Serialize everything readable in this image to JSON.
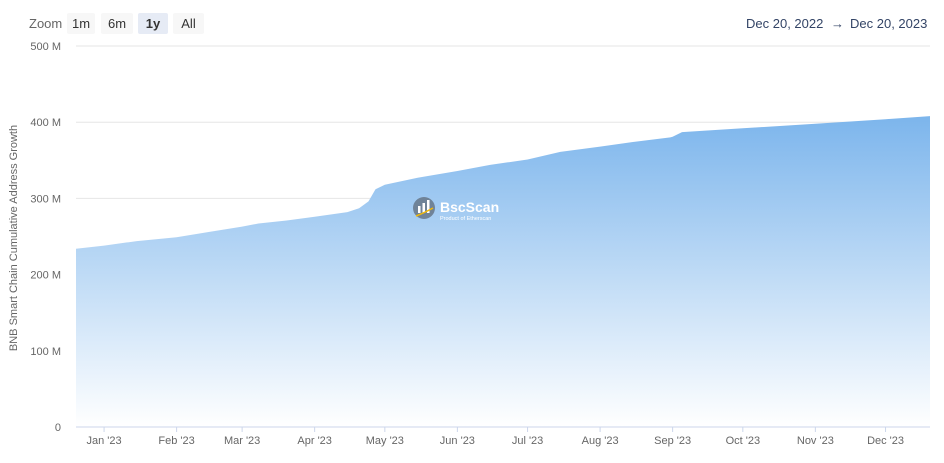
{
  "zoom": {
    "label": "Zoom",
    "buttons": [
      "1m",
      "6m",
      "1y",
      "All"
    ],
    "active": "1y"
  },
  "date_range": {
    "from": "Dec 20, 2022",
    "separator": "→",
    "to": "Dec 20, 2023"
  },
  "watermark": {
    "title": "BscScan",
    "subtitle": "Product of Etherscan"
  },
  "colors": {
    "area_top": "#7cb5ec",
    "area_bottom": "#ffffff",
    "range_text": "#334466"
  },
  "chart_data": {
    "type": "area",
    "title": "",
    "xlabel": "",
    "ylabel": "BNB Smart Chain Cumulative Address Growth",
    "x_start": "2022-12-20",
    "x_end": "2023-12-20",
    "ylim": [
      0,
      500000000
    ],
    "y_ticks": [
      0,
      100000000,
      200000000,
      300000000,
      400000000,
      500000000
    ],
    "y_tick_labels": [
      "0",
      "100 M",
      "200 M",
      "300 M",
      "400 M",
      "500 M"
    ],
    "x_tick_labels": [
      "Jan '23",
      "Feb '23",
      "Mar '23",
      "Apr '23",
      "May '23",
      "Jun '23",
      "Jul '23",
      "Aug '23",
      "Sep '23",
      "Oct '23",
      "Nov '23",
      "Dec '23"
    ],
    "x_tick_dates": [
      "2023-01-01",
      "2023-02-01",
      "2023-03-01",
      "2023-04-01",
      "2023-05-01",
      "2023-06-01",
      "2023-07-01",
      "2023-08-01",
      "2023-09-01",
      "2023-10-01",
      "2023-11-01",
      "2023-12-01"
    ],
    "grid": true,
    "series": [
      {
        "x": [
          "2022-12-20",
          "2023-01-01",
          "2023-01-15",
          "2023-02-01",
          "2023-02-15",
          "2023-03-01",
          "2023-03-08",
          "2023-03-20",
          "2023-04-01",
          "2023-04-15",
          "2023-04-20",
          "2023-04-24",
          "2023-04-27",
          "2023-05-01",
          "2023-05-15",
          "2023-06-01",
          "2023-06-15",
          "2023-07-01",
          "2023-07-15",
          "2023-08-01",
          "2023-08-15",
          "2023-08-31",
          "2023-09-01",
          "2023-09-05",
          "2023-09-15",
          "2023-10-01",
          "2023-11-01",
          "2023-12-01",
          "2023-12-20"
        ],
        "values": [
          234000000,
          238000000,
          244000000,
          249000000,
          256000000,
          263000000,
          267000000,
          271000000,
          276000000,
          282000000,
          287000000,
          296000000,
          312000000,
          318000000,
          327000000,
          336000000,
          344000000,
          351000000,
          361000000,
          368000000,
          374000000,
          380000000,
          381000000,
          387000000,
          389000000,
          392000000,
          398000000,
          404000000,
          408000000
        ]
      }
    ]
  }
}
